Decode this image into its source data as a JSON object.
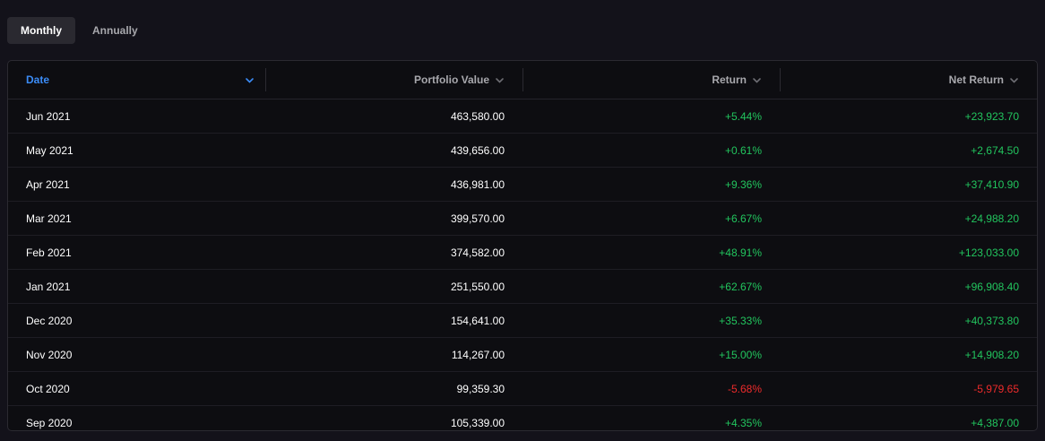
{
  "tabs": [
    {
      "label": "Monthly",
      "active": true
    },
    {
      "label": "Annually",
      "active": false
    }
  ],
  "columns": {
    "date": "Date",
    "portfolio_value": "Portfolio Value",
    "return": "Return",
    "net_return": "Net Return"
  },
  "colors": {
    "accent": "#3b8cf7",
    "positive": "#22c55e",
    "negative": "#ef2b2b",
    "background": "#13121a"
  },
  "rows": [
    {
      "date": "Jun 2021",
      "value": "463,580.00",
      "return": "+5.44%",
      "net": "+23,923.70",
      "sign": "pos"
    },
    {
      "date": "May 2021",
      "value": "439,656.00",
      "return": "+0.61%",
      "net": "+2,674.50",
      "sign": "pos"
    },
    {
      "date": "Apr 2021",
      "value": "436,981.00",
      "return": "+9.36%",
      "net": "+37,410.90",
      "sign": "pos"
    },
    {
      "date": "Mar 2021",
      "value": "399,570.00",
      "return": "+6.67%",
      "net": "+24,988.20",
      "sign": "pos"
    },
    {
      "date": "Feb 2021",
      "value": "374,582.00",
      "return": "+48.91%",
      "net": "+123,033.00",
      "sign": "pos"
    },
    {
      "date": "Jan 2021",
      "value": "251,550.00",
      "return": "+62.67%",
      "net": "+96,908.40",
      "sign": "pos"
    },
    {
      "date": "Dec 2020",
      "value": "154,641.00",
      "return": "+35.33%",
      "net": "+40,373.80",
      "sign": "pos"
    },
    {
      "date": "Nov 2020",
      "value": "114,267.00",
      "return": "+15.00%",
      "net": "+14,908.20",
      "sign": "pos"
    },
    {
      "date": "Oct 2020",
      "value": "99,359.30",
      "return": "-5.68%",
      "net": "-5,979.65",
      "sign": "neg"
    },
    {
      "date": "Sep 2020",
      "value": "105,339.00",
      "return": "+4.35%",
      "net": "+4,387.00",
      "sign": "pos"
    }
  ]
}
